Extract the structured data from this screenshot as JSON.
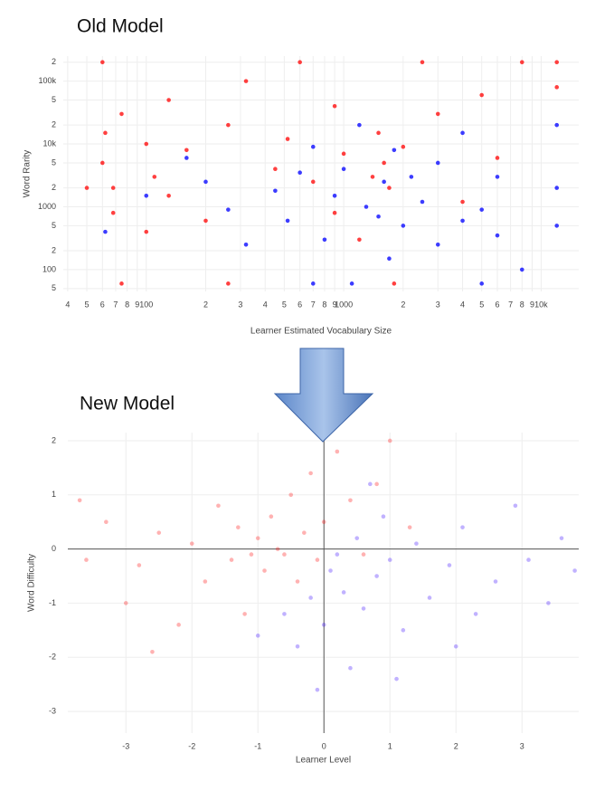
{
  "chart_data": [
    {
      "type": "scatter",
      "title": "Old Model",
      "xlabel": "Learner Estimated Vocabulary Size",
      "ylabel": "Word Rarity",
      "xlog": true,
      "ylog": true,
      "grid": true,
      "xlim": [
        38,
        15500
      ],
      "ylim": [
        45,
        250000
      ],
      "xticks": [
        {
          "value": 40,
          "label": "4"
        },
        {
          "value": 50,
          "label": "5"
        },
        {
          "value": 60,
          "label": "6"
        },
        {
          "value": 70,
          "label": "7"
        },
        {
          "value": 80,
          "label": "8"
        },
        {
          "value": 90,
          "label": "9"
        },
        100,
        {
          "value": 200,
          "label": "2"
        },
        {
          "value": 300,
          "label": "3"
        },
        {
          "value": 400,
          "label": "4"
        },
        {
          "value": 500,
          "label": "5"
        },
        {
          "value": 600,
          "label": "6"
        },
        {
          "value": 700,
          "label": "7"
        },
        {
          "value": 800,
          "label": "8"
        },
        {
          "value": 900,
          "label": "9"
        },
        1000,
        {
          "value": 2000,
          "label": "2"
        },
        {
          "value": 3000,
          "label": "3"
        },
        {
          "value": 4000,
          "label": "4"
        },
        {
          "value": 5000,
          "label": "5"
        },
        {
          "value": 6000,
          "label": "6"
        },
        {
          "value": 7000,
          "label": "7"
        },
        {
          "value": 8000,
          "label": "8"
        },
        {
          "value": 9000,
          "label": "9"
        },
        {
          "value": 10000,
          "label": "10k"
        }
      ],
      "yticks": [
        {
          "value": 50,
          "label": "5"
        },
        100,
        {
          "value": 200,
          "label": "2"
        },
        {
          "value": 500,
          "label": "5"
        },
        1000,
        {
          "value": 2000,
          "label": "2"
        },
        {
          "value": 5000,
          "label": "5"
        },
        {
          "value": 10000,
          "label": "10k"
        },
        {
          "value": 20000,
          "label": "2"
        },
        {
          "value": 50000,
          "label": "5"
        },
        {
          "value": 100000,
          "label": "100k"
        },
        {
          "value": 200000,
          "label": "2"
        }
      ],
      "series": [
        {
          "color": "#ff0000",
          "opacity": 0.75,
          "x": [
            60,
            60,
            68,
            68,
            75,
            75,
            100,
            100,
            110,
            130,
            130,
            160,
            200,
            260,
            260,
            320,
            450,
            520,
            600,
            700,
            900,
            1000,
            1200,
            1500,
            1600,
            1700,
            1800,
            2000,
            2500,
            3000,
            4000,
            5000,
            6000,
            8000,
            12000,
            12000,
            50,
            62,
            900,
            1400
          ],
          "y": [
            5000,
            200000,
            2000,
            800,
            30000,
            60,
            10000,
            400,
            3000,
            50000,
            1500,
            8000,
            600,
            20000,
            60,
            100000,
            4000,
            12000,
            200000,
            2500,
            40000,
            7000,
            300,
            15000,
            5000,
            2000,
            60,
            9000,
            200000,
            30000,
            1200,
            60000,
            6000,
            200000,
            200000,
            80000,
            2000,
            15000,
            800,
            3000
          ]
        },
        {
          "color": "#1a1aff",
          "opacity": 0.85,
          "x": [
            62,
            100,
            160,
            200,
            260,
            320,
            450,
            520,
            600,
            700,
            800,
            900,
            1000,
            1100,
            1200,
            1300,
            1500,
            1600,
            1700,
            2000,
            2200,
            2500,
            3000,
            3000,
            4000,
            4000,
            5000,
            5000,
            6000,
            6000,
            8000,
            12000,
            12000,
            12000,
            1800,
            700
          ],
          "y": [
            400,
            1500,
            6000,
            2500,
            900,
            250,
            1800,
            600,
            3500,
            9000,
            300,
            1500,
            4000,
            60,
            20000,
            1000,
            700,
            2500,
            150,
            500,
            3000,
            1200,
            250,
            5000,
            600,
            15000,
            900,
            60,
            3000,
            350,
            100,
            2000,
            500,
            20000,
            8000,
            60
          ]
        }
      ]
    },
    {
      "type": "scatter",
      "title": "New Model",
      "xlabel": "Learner Level",
      "ylabel": "Word Difficulty",
      "grid": true,
      "zeroline": true,
      "xlim": [
        -3.88,
        3.86
      ],
      "ylim": [
        -3.4,
        2.15
      ],
      "xticks": [
        -3,
        -2,
        -1,
        0,
        1,
        2,
        3
      ],
      "yticks": [
        -3,
        -2,
        -1,
        0,
        1,
        2
      ],
      "series": [
        {
          "color": "#ff0000",
          "opacity": 0.3,
          "x": [
            -3.6,
            -3.3,
            -3.0,
            -2.8,
            -2.5,
            -2.2,
            -2.0,
            -1.8,
            -1.6,
            -1.4,
            -1.2,
            -1.0,
            -0.9,
            -0.8,
            -0.6,
            -0.5,
            -0.4,
            -0.3,
            -0.2,
            -0.1,
            0.0,
            0.2,
            0.4,
            0.6,
            0.8,
            1.0,
            1.3,
            -1.1,
            -0.7,
            -1.3,
            -2.6,
            -3.7
          ],
          "y": [
            -0.2,
            0.5,
            -1.0,
            -0.3,
            0.3,
            -1.4,
            0.1,
            -0.6,
            0.8,
            -0.2,
            -1.2,
            0.2,
            -0.4,
            0.6,
            -0.1,
            1.0,
            -0.6,
            0.3,
            1.4,
            -0.2,
            0.5,
            1.8,
            0.9,
            -0.1,
            1.2,
            2.0,
            0.4,
            -0.1,
            0.0,
            0.4,
            -1.9,
            0.9
          ]
        },
        {
          "color": "#3300ff",
          "opacity": 0.3,
          "x": [
            -1.0,
            -0.6,
            -0.4,
            -0.2,
            0.0,
            0.1,
            0.3,
            0.5,
            0.6,
            0.8,
            0.9,
            1.0,
            1.2,
            1.4,
            1.6,
            1.9,
            2.1,
            2.3,
            2.6,
            2.9,
            3.1,
            3.4,
            3.6,
            3.8,
            0.4,
            -0.1,
            1.1,
            2.0,
            0.7,
            0.2
          ],
          "y": [
            -1.6,
            -1.2,
            -1.8,
            -0.9,
            -1.4,
            -0.4,
            -0.8,
            0.2,
            -1.1,
            -0.5,
            0.6,
            -0.2,
            -1.5,
            0.1,
            -0.9,
            -0.3,
            0.4,
            -1.2,
            -0.6,
            0.8,
            -0.2,
            -1.0,
            0.2,
            -0.4,
            -2.2,
            -2.6,
            -2.4,
            -1.8,
            1.2,
            -0.1
          ]
        }
      ]
    }
  ]
}
